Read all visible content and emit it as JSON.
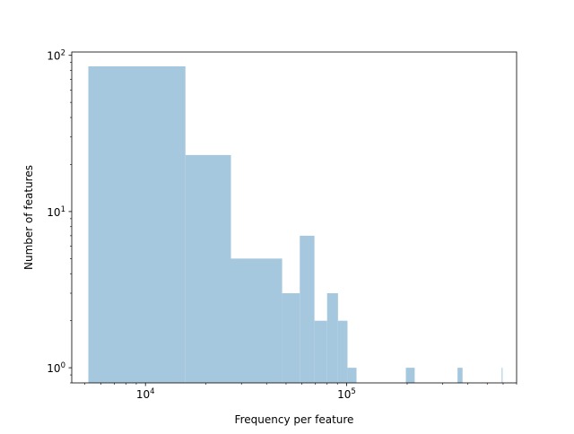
{
  "chart_data": {
    "type": "histogram",
    "xlabel": "Frequency per feature",
    "ylabel": "Number of features",
    "xscale": "log",
    "yscale": "log",
    "xlim": [
      4300,
      700000
    ],
    "ylim": [
      0.8,
      105
    ],
    "bar_color": "#a6c8df",
    "bar_alpha_note": "translucent steelblue",
    "x_major_ticks": [
      {
        "value": 10000,
        "base": "10",
        "exp": "4"
      },
      {
        "value": 100000,
        "base": "10",
        "exp": "5"
      }
    ],
    "y_major_ticks": [
      {
        "value": 1,
        "base": "10",
        "exp": "0"
      },
      {
        "value": 10,
        "base": "10",
        "exp": "1"
      },
      {
        "value": 100,
        "base": "10",
        "exp": "2"
      }
    ],
    "bins": [
      {
        "x0": 5200,
        "x1": 15800,
        "count": 85
      },
      {
        "x0": 15800,
        "x1": 26600,
        "count": 23
      },
      {
        "x0": 26600,
        "x1": 47800,
        "count": 5
      },
      {
        "x0": 47800,
        "x1": 58500,
        "count": 3
      },
      {
        "x0": 58500,
        "x1": 69200,
        "count": 7
      },
      {
        "x0": 69200,
        "x1": 80000,
        "count": 2
      },
      {
        "x0": 80000,
        "x1": 90600,
        "count": 3
      },
      {
        "x0": 90600,
        "x1": 101000,
        "count": 2
      },
      {
        "x0": 101000,
        "x1": 112000,
        "count": 1
      },
      {
        "x0": 197000,
        "x1": 218000,
        "count": 1
      },
      {
        "x0": 356000,
        "x1": 377000,
        "count": 1
      },
      {
        "x0": 590000,
        "x1": 594000,
        "count": 1
      }
    ],
    "grid": false,
    "legend": "none"
  }
}
